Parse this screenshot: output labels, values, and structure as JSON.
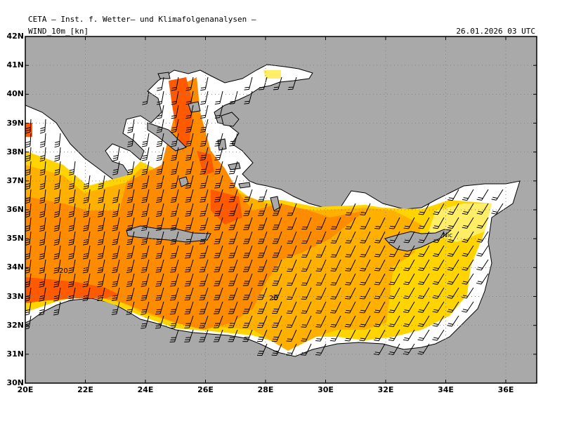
{
  "header": {
    "institution": "CETA — Inst. f. Wetter— und Klimafolgenanalysen —",
    "variable": "WIND_10m_[kn]",
    "valid_time": "26.01.2026 03 UTC"
  },
  "axes": {
    "lat_labels": [
      "42N",
      "41N",
      "40N",
      "39N",
      "38N",
      "37N",
      "36N",
      "35N",
      "34N",
      "33N",
      "32N",
      "31N",
      "30N"
    ],
    "lon_labels": [
      "20E",
      "22E",
      "24E",
      "26E",
      "28E",
      "30E",
      "32E",
      "34E",
      "36E"
    ]
  },
  "contour_labels": [
    "20",
    "20"
  ],
  "place_labels": [
    "Nic"
  ],
  "colors": {
    "land": "#a9a9a9",
    "nodata_sea": "#ffffff",
    "wind_10_15": "#ffee66",
    "wind_15_20": "#ffd400",
    "wind_20_25": "#ffb000",
    "wind_25_30": "#ff8c00",
    "wind_30_plus": "#ff5a00",
    "coastline": "#000000",
    "barb": "#000000"
  }
}
